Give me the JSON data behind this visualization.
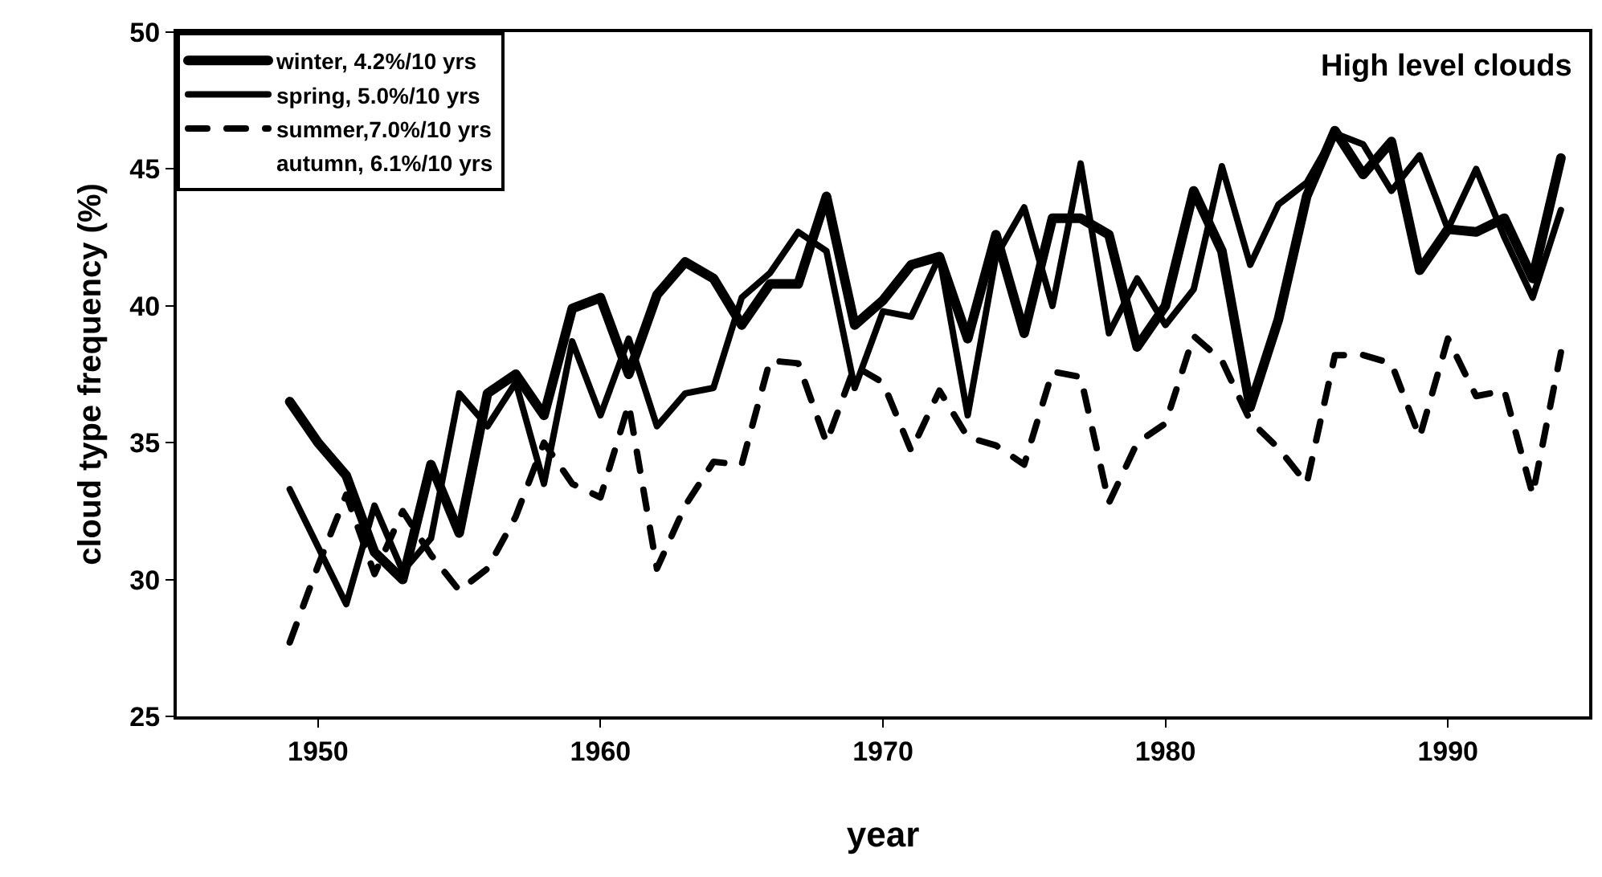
{
  "chart_data": {
    "type": "line",
    "title": "High level clouds",
    "xlabel": "year",
    "ylabel": "cloud type frequency (%)",
    "x": [
      1949,
      1950,
      1951,
      1952,
      1953,
      1954,
      1955,
      1956,
      1957,
      1958,
      1959,
      1960,
      1961,
      1962,
      1963,
      1964,
      1965,
      1966,
      1967,
      1968,
      1969,
      1970,
      1971,
      1972,
      1973,
      1974,
      1975,
      1976,
      1977,
      1978,
      1979,
      1980,
      1981,
      1982,
      1983,
      1984,
      1985,
      1986,
      1987,
      1988,
      1989,
      1990,
      1991,
      1992,
      1993,
      1994
    ],
    "series": [
      {
        "name": "winter, 4.2%/10 yrs",
        "color": "#000000",
        "line_style": "solid",
        "values": [
          36.5,
          35.0,
          33.8,
          31.0,
          30.0,
          34.2,
          31.7,
          36.8,
          37.5,
          36.0,
          39.9,
          40.3,
          37.5,
          40.4,
          41.6,
          41.0,
          39.3,
          40.8,
          40.8,
          44.0,
          39.3,
          40.2,
          41.5,
          41.8,
          38.8,
          42.6,
          39.0,
          43.2,
          43.2,
          42.6,
          38.5,
          40.0,
          44.2,
          42.0,
          36.3,
          39.5,
          44.0,
          46.4,
          44.8,
          46.0,
          41.3,
          42.8,
          42.7,
          43.2,
          41.0,
          45.4
        ]
      },
      {
        "name": "spring, 5.0%/10 yrs",
        "color": "#000000",
        "line_style": "solid",
        "values": [
          33.3,
          31.2,
          29.1,
          32.7,
          30.3,
          31.5,
          36.8,
          35.6,
          37.2,
          33.5,
          38.7,
          36.0,
          38.8,
          35.6,
          36.8,
          37.0,
          40.3,
          41.2,
          42.7,
          42.0,
          37.0,
          39.8,
          39.6,
          41.8,
          36.0,
          41.8,
          43.6,
          40.0,
          45.2,
          39.0,
          41.0,
          39.3,
          40.6,
          45.1,
          41.5,
          43.7,
          44.5,
          46.3,
          45.9,
          44.2,
          45.5,
          42.8,
          45.0,
          42.5,
          40.3,
          43.5
        ]
      },
      {
        "name": "summer,7.0%/10 yrs",
        "color": "#000000",
        "line_style": "dashed",
        "values": [
          27.7,
          30.5,
          33.1,
          30.2,
          32.5,
          30.9,
          29.6,
          30.4,
          32.3,
          35.0,
          33.5,
          33.0,
          36.4,
          30.4,
          32.7,
          34.3,
          34.2,
          38.0,
          37.9,
          35.0,
          37.8,
          37.2,
          34.7,
          36.9,
          35.2,
          34.9,
          34.2,
          37.6,
          37.4,
          32.8,
          35.0,
          35.7,
          38.9,
          38.0,
          35.8,
          34.8,
          33.5,
          38.2,
          38.2,
          37.9,
          35.2,
          38.8,
          36.7,
          36.9,
          33.1,
          38.3
        ]
      },
      {
        "name": "autumn, 6.1%/10 yrs",
        "values": [
          null,
          null,
          null,
          null,
          null,
          null,
          null,
          null,
          null,
          null,
          null,
          null,
          null,
          null,
          null,
          null,
          null,
          null,
          null,
          null,
          null,
          null,
          null,
          null,
          null,
          null,
          null,
          null,
          null,
          null,
          null,
          null,
          null,
          null,
          null,
          null,
          null,
          null,
          null,
          null,
          null,
          null,
          null,
          null,
          null,
          null
        ]
      }
    ],
    "xlim": [
      1945,
      1995
    ],
    "xticks": [
      1950,
      1960,
      1970,
      1980,
      1990
    ],
    "ylim": [
      25,
      50
    ],
    "yticks": [
      25,
      30,
      35,
      40,
      45,
      50
    ],
    "grid": false,
    "legend": "top left",
    "marker": "none"
  }
}
